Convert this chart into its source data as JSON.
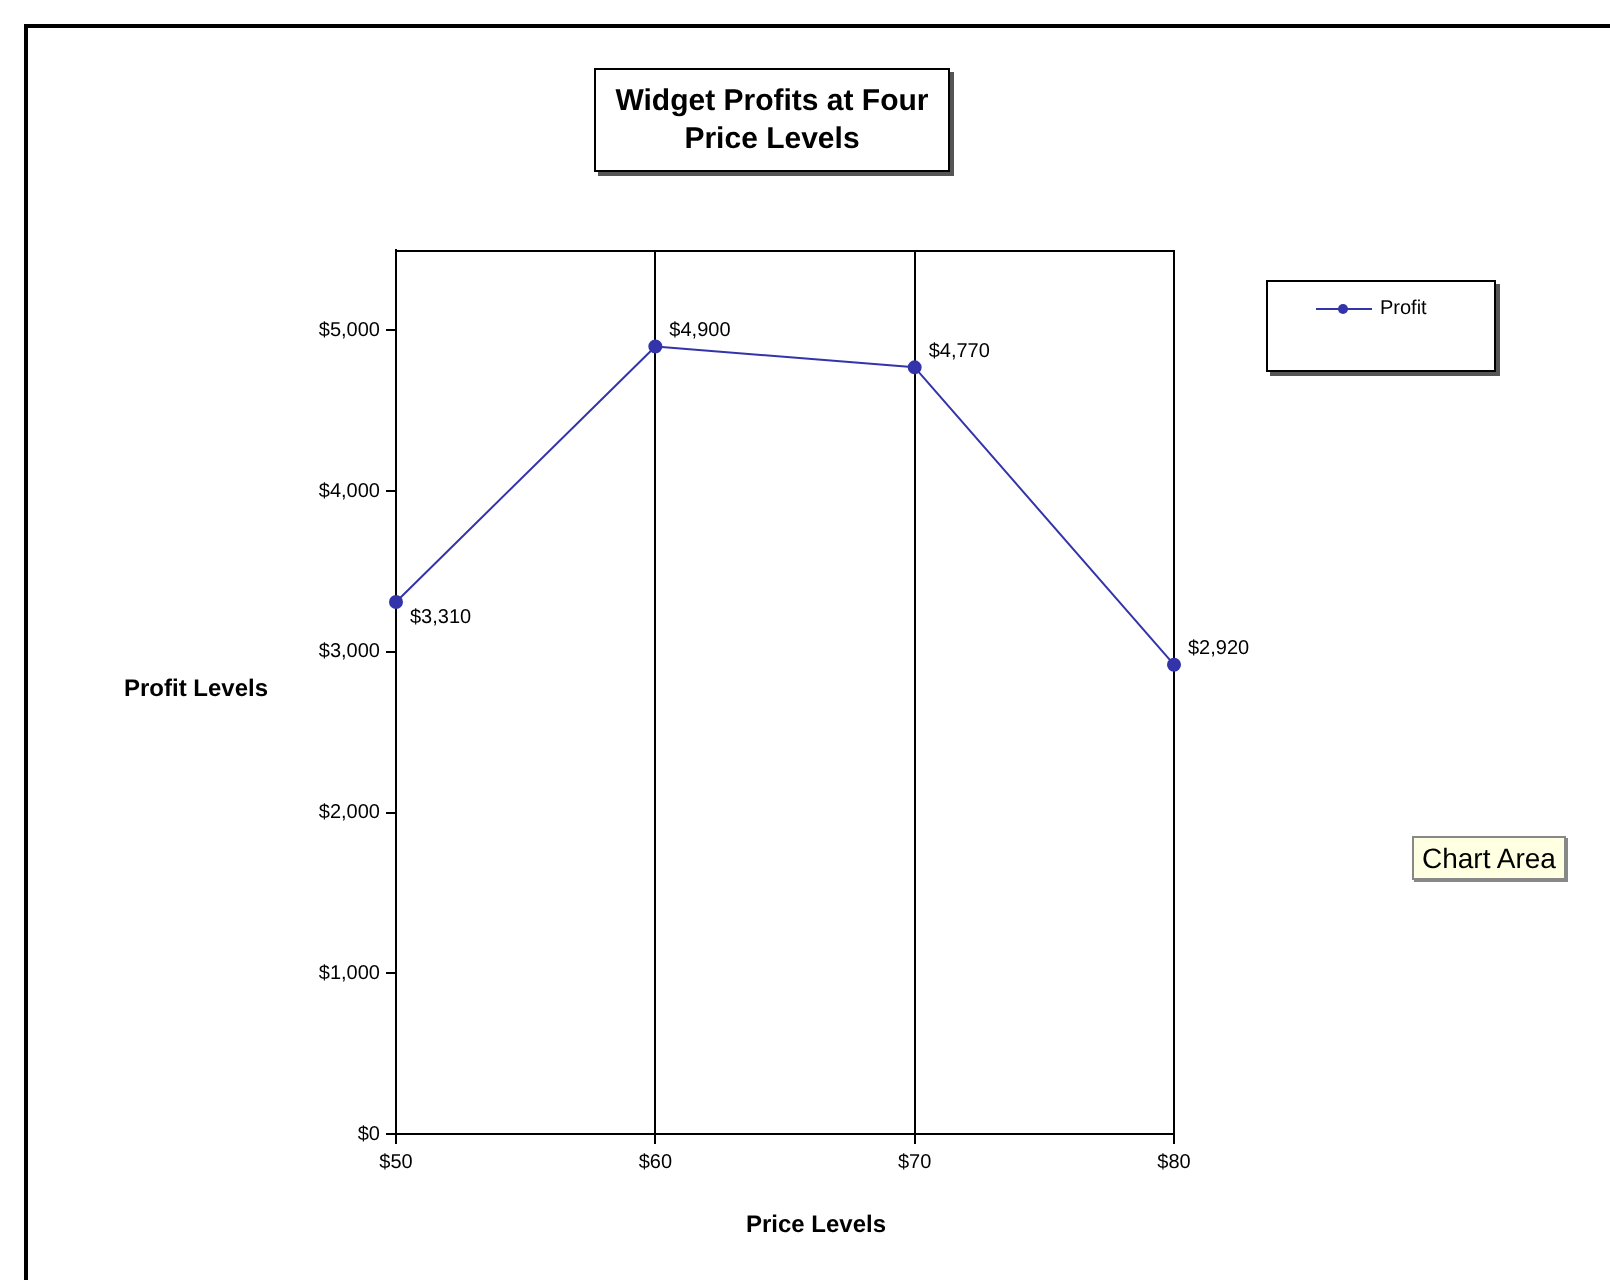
{
  "chart_data": {
    "type": "line",
    "title": "Widget Profits at Four Price Levels",
    "xlabel": "Price Levels",
    "ylabel": "Profit Levels",
    "categories": [
      "$50",
      "$60",
      "$70",
      "$80"
    ],
    "series": [
      {
        "name": "Profit",
        "color": "#3333aa",
        "values": [
          3310,
          4900,
          4770,
          2920
        ],
        "value_labels": [
          "$3,310",
          "$4,900",
          "$4,770",
          "$2,920"
        ]
      }
    ],
    "ylim": [
      0,
      5500
    ],
    "yticks": [
      {
        "value": 0,
        "label": "$0"
      },
      {
        "value": 1000,
        "label": "$1,000"
      },
      {
        "value": 2000,
        "label": "$2,000"
      },
      {
        "value": 3000,
        "label": "$3,000"
      },
      {
        "value": 4000,
        "label": "$4,000"
      },
      {
        "value": 5000,
        "label": "$5,000"
      }
    ],
    "grid": "x",
    "legend": "right",
    "marker": "circle",
    "line_style": "solid",
    "annotations": [
      "Chart Area"
    ]
  }
}
